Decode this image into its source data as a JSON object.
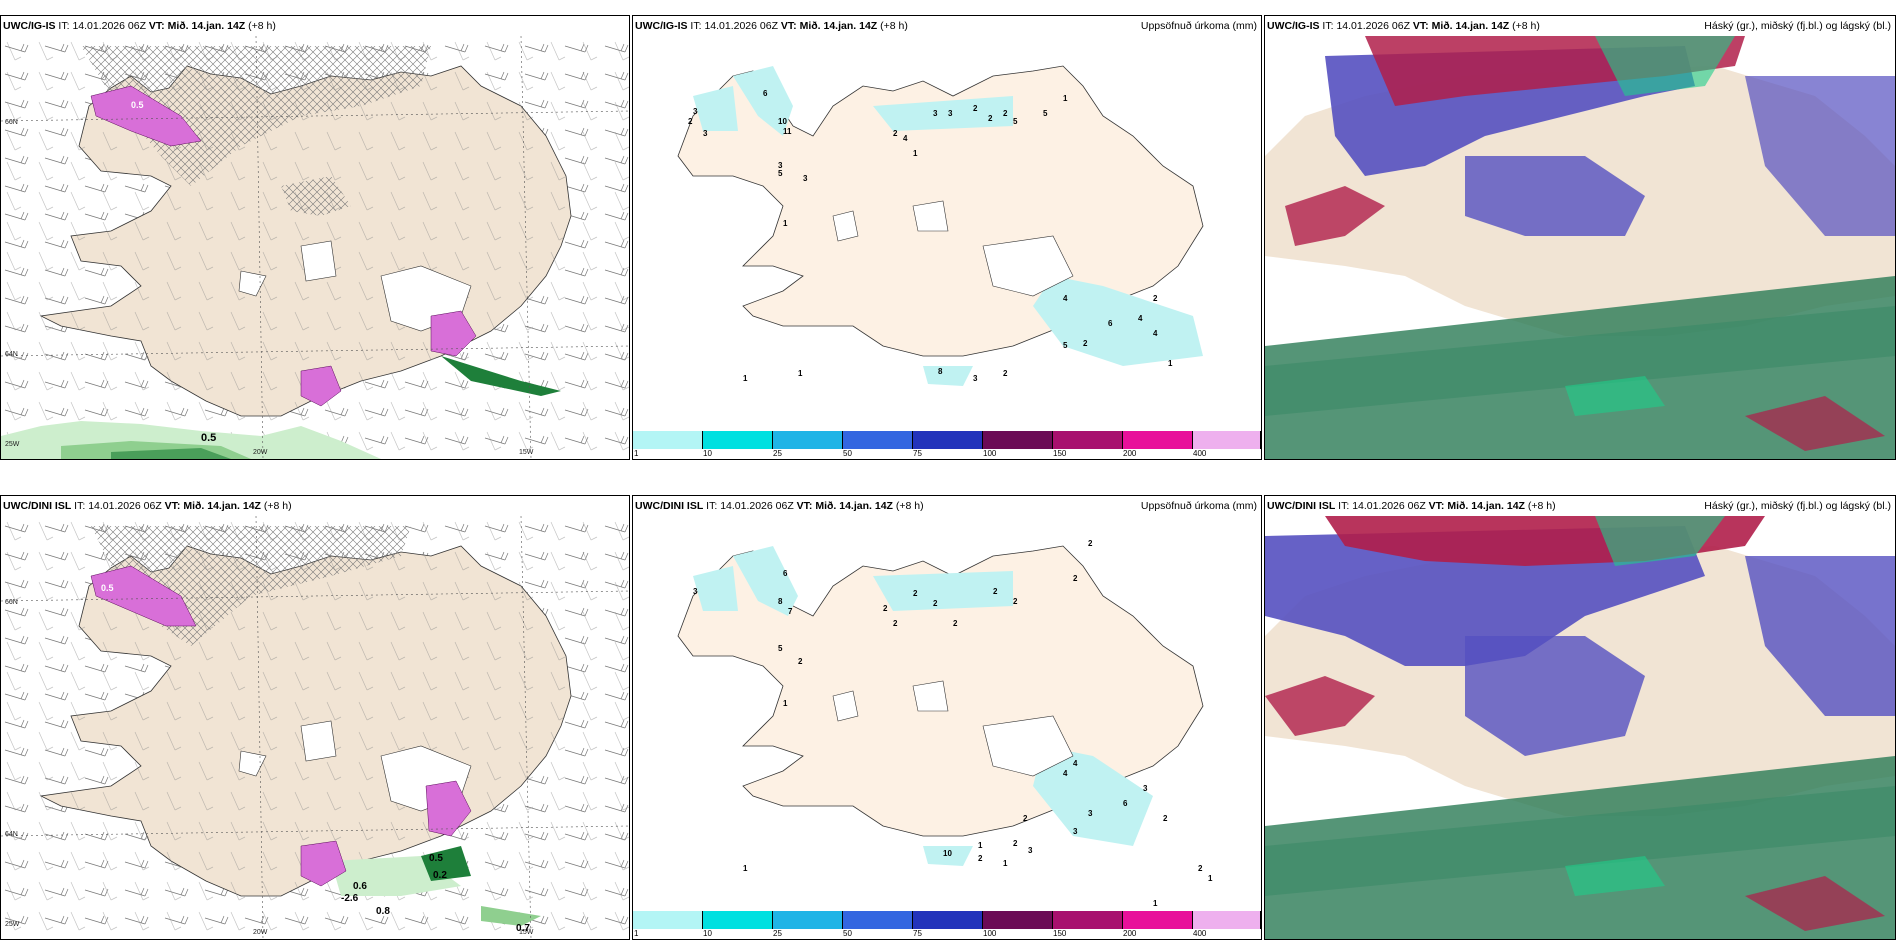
{
  "panels": [
    {
      "model": "UWC/IG-IS",
      "it_label": "IT:",
      "it": "14.01.2026 06Z",
      "vt_label": "VT:",
      "vt": "Mið. 14.jan. 14Z",
      "lead": "(+8 h)",
      "right_title": ""
    },
    {
      "model": "UWC/IG-IS",
      "it_label": "IT:",
      "it": "14.01.2026 06Z",
      "vt_label": "VT:",
      "vt": "Mið. 14.jan. 14Z",
      "lead": "(+8 h)",
      "right_title": "Uppsöfnuð úrkoma (mm)"
    },
    {
      "model": "UWC/IG-IS",
      "it_label": "IT:",
      "it": "14.01.2026 06Z",
      "vt_label": "VT:",
      "vt": "Mið. 14.jan. 14Z",
      "lead": "(+8 h)",
      "right_title": "Háský (gr.), miðský (fj.bl.) og lágský (bl.)"
    },
    {
      "model": "UWC/DINI ISL",
      "it_label": "IT:",
      "it": "14.01.2026 06Z",
      "vt_label": "VT:",
      "vt": "Mið. 14.jan. 14Z",
      "lead": "(+8 h)",
      "right_title": ""
    },
    {
      "model": "UWC/DINI ISL",
      "it_label": "IT:",
      "it": "14.01.2026 06Z",
      "vt_label": "VT:",
      "vt": "Mið. 14.jan. 14Z",
      "lead": "(+8 h)",
      "right_title": "Uppsöfnuð úrkoma (mm)"
    },
    {
      "model": "UWC/DINI ISL",
      "it_label": "IT:",
      "it": "14.01.2026 06Z",
      "vt_label": "VT:",
      "vt": "Mið. 14.jan. 14Z",
      "lead": "(+8 h)",
      "right_title": "Háský (gr.), miðský (fj.bl.) og lágský (bl.)"
    }
  ],
  "axes": {
    "lat_66": "66N",
    "lat_64": "64N",
    "lon_25": "25W",
    "lon_20": "20W",
    "lon_15": "15W"
  },
  "temp_labels": {
    "top": [
      "0.5",
      "0.5"
    ],
    "bottom": [
      "0.5",
      "0.2",
      "-2.6",
      "0.6",
      "0.8",
      "0.7",
      "0.5"
    ]
  },
  "precip_labels": {
    "top": [
      "3",
      "2",
      "3",
      "10",
      "11",
      "5",
      "6",
      "3",
      "2",
      "4",
      "3",
      "3",
      "2",
      "2",
      "2",
      "1",
      "5",
      "5",
      "3",
      "1",
      "1",
      "4",
      "6",
      "4",
      "4",
      "2",
      "1",
      "2",
      "3",
      "2",
      "8",
      "5",
      "1",
      "1"
    ],
    "bottom": [
      "3",
      "8",
      "7",
      "2",
      "2",
      "2",
      "2",
      "2",
      "2",
      "2",
      "2",
      "2",
      "5",
      "6",
      "2",
      "1",
      "4",
      "4",
      "6",
      "3",
      "3",
      "3",
      "2",
      "2",
      "1",
      "1",
      "10",
      "2",
      "1",
      "3",
      "1",
      "2",
      "2",
      "1"
    ]
  },
  "colorbar": {
    "ticks": [
      "1",
      "10",
      "25",
      "50",
      "75",
      "100",
      "150",
      "200",
      "400"
    ],
    "colors": [
      "#b3f5f5",
      "#00e0e0",
      "#1fb4e6",
      "#3366e0",
      "#2233bb",
      "#6b0b55",
      "#a8106e",
      "#e8109a",
      "#eeb0ee"
    ]
  },
  "colors": {
    "land": "#f1e4d4",
    "ocean": "#ffffff",
    "precip_light": "#c0f2f2",
    "snow_pink": "#d86fd8",
    "green_light": "#cdeecd",
    "green_dark": "#1e7f3a"
  }
}
